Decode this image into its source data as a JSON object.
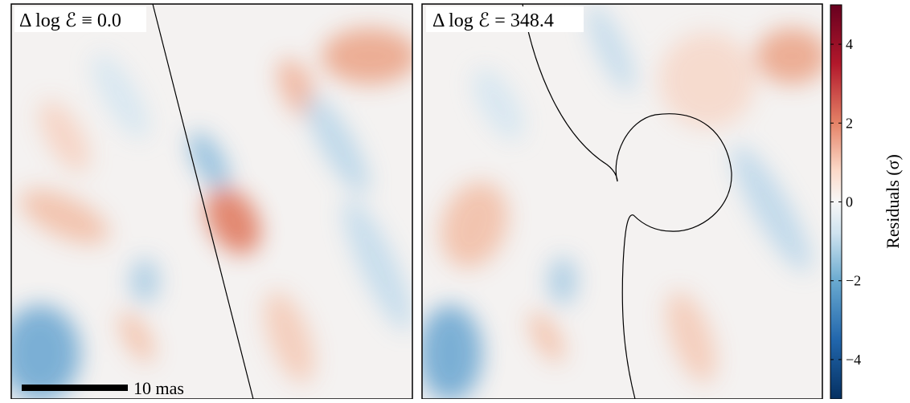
{
  "chart_data": [
    {
      "type": "image",
      "annotation": "Δ log ℰ ≡ 0.0",
      "scalebar_label": "10 mas"
    },
    {
      "type": "image",
      "annotation": "Δ log ℰ = 348.4"
    },
    {
      "type": "colorbar",
      "label": "Residuals (σ)",
      "ylim": [
        -5,
        5
      ],
      "yticks": [
        {
          "value": -4,
          "label": "−4"
        },
        {
          "value": -2,
          "label": "−2"
        },
        0,
        2,
        4
      ]
    }
  ]
}
